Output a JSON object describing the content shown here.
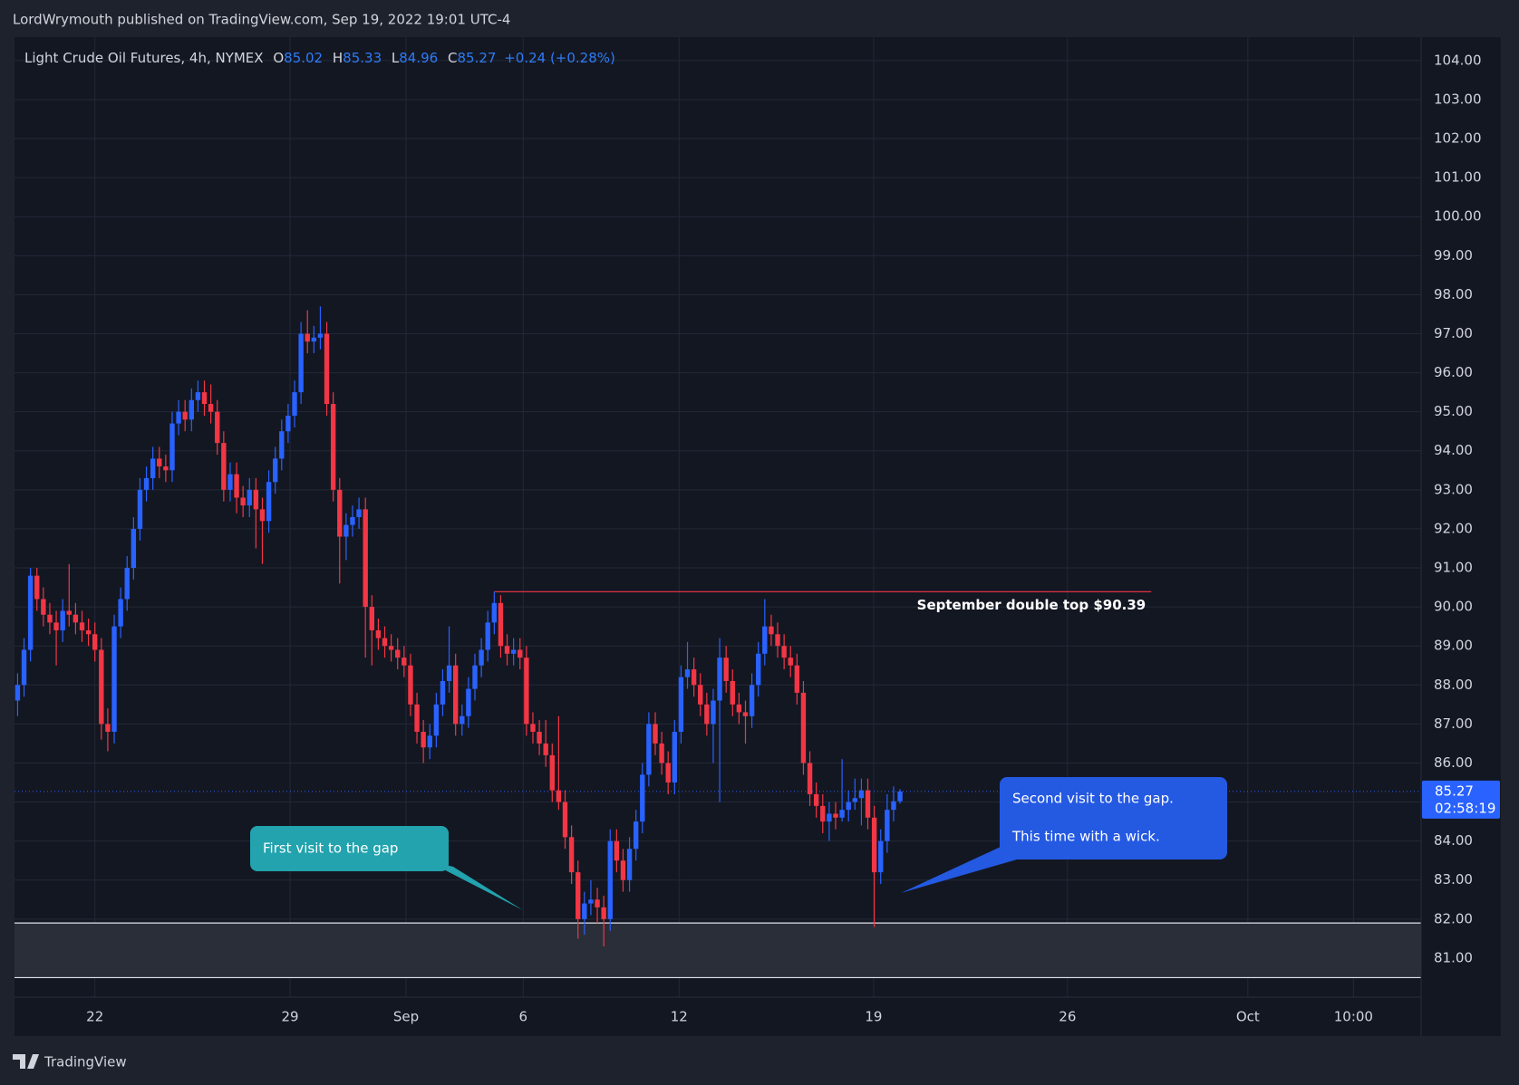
{
  "header": "LordWrymouth published on TradingView.com, Sep 19, 2022 19:01 UTC-4",
  "footer": "TradingView",
  "chart_data": {
    "type": "candlestick",
    "title": "Light Crude Oil Futures, 4h, NYMEX",
    "ohlc_labels": [
      "O",
      "H",
      "L",
      "C"
    ],
    "change_label": "+0.24 (+0.28%)",
    "countdown": "02:58:19",
    "up_color": "#2962ff",
    "down_color": "#f23645",
    "open": [
      87.6,
      88.0,
      88.9,
      90.8,
      90.2,
      89.8,
      89.6,
      89.4,
      89.9,
      89.8,
      89.6,
      89.4,
      89.3,
      88.9,
      87.0,
      86.8,
      89.5,
      90.2,
      91.0,
      92.0,
      93.0,
      93.3,
      93.8,
      93.6,
      93.5,
      94.7,
      95.0,
      94.8,
      95.3,
      95.5,
      95.2,
      95.0,
      94.2,
      93.0,
      93.4,
      92.8,
      92.6,
      93.0,
      92.5,
      92.2,
      93.2,
      93.8,
      94.5,
      94.9,
      95.5,
      97.0,
      96.8,
      96.9,
      97.0,
      95.2,
      93.0,
      91.8,
      92.1,
      92.3,
      92.5,
      90.0,
      89.4,
      89.2,
      89.0,
      88.9,
      88.7,
      88.5,
      87.5,
      86.8,
      86.4,
      86.7,
      87.5,
      88.1,
      88.5,
      87.0,
      87.2,
      87.9,
      88.5,
      88.9,
      89.6,
      90.1,
      89.0,
      88.8,
      88.9,
      88.7,
      87.0,
      86.8,
      86.5,
      86.2,
      85.3,
      85.0,
      84.1,
      83.2,
      82.0,
      82.4,
      82.5,
      82.3,
      82.0,
      84.0,
      83.5,
      83.0,
      83.8,
      84.5,
      85.7,
      87.0,
      86.5,
      86.0,
      85.5,
      86.8,
      88.2,
      88.4,
      88.0,
      87.5,
      87.0,
      87.6,
      88.7,
      88.1,
      87.5,
      87.3,
      87.2,
      88.0,
      88.8,
      89.5,
      89.3,
      89.0,
      88.7,
      88.5,
      87.8,
      86.0,
      85.2,
      84.9,
      84.5,
      84.7,
      84.6,
      84.8,
      85.0,
      85.1,
      85.3,
      84.6,
      83.2,
      84.0,
      84.8,
      85.02
    ],
    "high": [
      88.3,
      89.2,
      91.0,
      91.0,
      90.5,
      90.1,
      89.9,
      90.2,
      91.1,
      90.1,
      89.9,
      89.7,
      89.6,
      89.2,
      87.4,
      89.8,
      90.5,
      91.3,
      92.3,
      93.3,
      93.6,
      94.1,
      94.1,
      93.9,
      95.0,
      95.3,
      95.3,
      95.6,
      95.8,
      95.8,
      95.7,
      95.3,
      94.5,
      93.7,
      93.7,
      93.1,
      93.3,
      93.3,
      92.8,
      93.5,
      94.1,
      94.8,
      95.2,
      95.8,
      97.3,
      97.6,
      97.2,
      97.7,
      97.3,
      95.5,
      93.3,
      92.4,
      92.6,
      92.8,
      92.8,
      90.3,
      89.7,
      89.5,
      89.3,
      89.2,
      89.0,
      88.8,
      87.8,
      87.1,
      87.0,
      87.8,
      88.4,
      89.5,
      88.8,
      87.5,
      88.2,
      88.8,
      89.2,
      89.9,
      90.39,
      90.3,
      89.3,
      89.2,
      89.2,
      89.0,
      87.3,
      87.1,
      87.1,
      86.5,
      87.2,
      85.3,
      84.4,
      83.5,
      82.7,
      83.0,
      82.8,
      82.6,
      84.3,
      84.3,
      83.8,
      84.1,
      84.8,
      86.0,
      87.3,
      87.3,
      86.8,
      86.3,
      87.1,
      88.5,
      89.1,
      88.7,
      88.3,
      87.8,
      87.9,
      89.2,
      89.0,
      88.4,
      87.8,
      87.6,
      88.3,
      89.1,
      90.2,
      89.8,
      89.6,
      89.3,
      89.0,
      88.8,
      88.1,
      86.3,
      85.5,
      85.2,
      85.0,
      85.0,
      86.1,
      85.3,
      85.6,
      85.6,
      85.6,
      84.9,
      84.3,
      85.2,
      85.4,
      85.33
    ],
    "low": [
      87.2,
      87.7,
      88.6,
      89.9,
      89.5,
      89.3,
      88.5,
      89.1,
      89.5,
      89.3,
      89.1,
      89.0,
      88.6,
      86.6,
      86.3,
      86.5,
      89.2,
      89.9,
      90.7,
      91.7,
      92.7,
      93.0,
      93.3,
      93.2,
      93.2,
      94.4,
      94.5,
      94.5,
      95.0,
      94.9,
      94.7,
      93.9,
      92.7,
      92.7,
      92.4,
      92.3,
      92.3,
      91.5,
      91.1,
      91.9,
      92.9,
      93.5,
      94.2,
      94.6,
      95.2,
      96.5,
      96.5,
      96.6,
      94.9,
      92.7,
      90.6,
      91.2,
      91.8,
      92.0,
      88.7,
      88.5,
      88.9,
      88.7,
      88.6,
      88.4,
      88.2,
      87.2,
      86.5,
      86.0,
      86.1,
      86.4,
      87.2,
      87.8,
      86.7,
      86.7,
      86.9,
      87.6,
      88.2,
      88.6,
      89.3,
      88.7,
      88.5,
      88.5,
      88.4,
      86.7,
      86.5,
      86.2,
      85.9,
      85.0,
      84.8,
      83.8,
      82.9,
      81.5,
      81.6,
      82.1,
      81.9,
      81.3,
      81.7,
      83.2,
      82.7,
      82.7,
      83.5,
      84.2,
      85.4,
      86.2,
      85.7,
      85.2,
      85.2,
      86.5,
      87.9,
      87.7,
      87.2,
      86.7,
      86.0,
      85.0,
      87.8,
      87.2,
      87.0,
      86.5,
      86.9,
      87.7,
      88.5,
      89.0,
      88.7,
      88.4,
      88.2,
      87.5,
      85.7,
      84.9,
      84.6,
      84.2,
      84.0,
      84.3,
      84.5,
      84.5,
      84.8,
      84.4,
      84.3,
      81.8,
      82.9,
      83.7,
      84.5,
      84.96
    ],
    "close": [
      88.0,
      88.9,
      90.8,
      90.2,
      89.8,
      89.6,
      89.4,
      89.9,
      89.8,
      89.6,
      89.4,
      89.3,
      88.9,
      87.0,
      86.8,
      89.5,
      90.2,
      91.0,
      92.0,
      93.0,
      93.3,
      93.8,
      93.6,
      93.5,
      94.7,
      95.0,
      94.8,
      95.3,
      95.5,
      95.2,
      95.0,
      94.2,
      93.0,
      93.4,
      92.8,
      92.6,
      93.0,
      92.5,
      92.2,
      93.2,
      93.8,
      94.5,
      94.9,
      95.5,
      97.0,
      96.8,
      96.9,
      97.0,
      95.2,
      93.0,
      91.8,
      92.1,
      92.3,
      92.5,
      90.0,
      89.4,
      89.2,
      89.0,
      88.9,
      88.7,
      88.5,
      87.5,
      86.8,
      86.4,
      86.7,
      87.5,
      88.1,
      88.5,
      87.0,
      87.2,
      87.9,
      88.5,
      88.9,
      89.6,
      90.1,
      89.0,
      88.8,
      88.9,
      88.7,
      87.0,
      86.8,
      86.5,
      86.2,
      85.3,
      85.0,
      84.1,
      83.2,
      82.0,
      82.4,
      82.5,
      82.3,
      82.0,
      84.0,
      83.5,
      83.0,
      83.8,
      84.5,
      85.7,
      87.0,
      86.5,
      86.0,
      85.5,
      86.8,
      88.2,
      88.4,
      88.0,
      87.5,
      87.0,
      87.6,
      88.7,
      88.1,
      87.5,
      87.3,
      87.2,
      88.0,
      88.8,
      89.5,
      89.3,
      89.0,
      88.7,
      88.5,
      87.8,
      86.0,
      85.2,
      84.9,
      84.5,
      84.7,
      84.6,
      84.8,
      85.0,
      85.1,
      85.3,
      84.6,
      83.2,
      84.0,
      84.8,
      85.02,
      85.27
    ],
    "xlim": [
      -0.2,
      217.9
    ],
    "xticks": [
      {
        "value": 12,
        "label": "22"
      },
      {
        "value": 42.3,
        "label": "29"
      },
      {
        "value": 60.3,
        "label": "Sep"
      },
      {
        "value": 78.5,
        "label": "6"
      },
      {
        "value": 102.7,
        "label": "12"
      },
      {
        "value": 132.9,
        "label": "19"
      },
      {
        "value": 163,
        "label": "26"
      },
      {
        "value": 191,
        "label": "Oct"
      },
      {
        "value": 207.4,
        "label": "10:00"
      }
    ],
    "ylim": [
      80,
      104.6
    ],
    "yticks": [
      {
        "value": 81,
        "label": "81.00"
      },
      {
        "value": 82,
        "label": "82.00"
      },
      {
        "value": 83,
        "label": "83.00"
      },
      {
        "value": 84,
        "label": "84.00"
      },
      {
        "value": 85,
        "label": "85.00"
      },
      {
        "value": 86,
        "label": "86.00"
      },
      {
        "value": 87,
        "label": "87.00"
      },
      {
        "value": 88,
        "label": "88.00"
      },
      {
        "value": 89,
        "label": "89.00"
      },
      {
        "value": 90,
        "label": "90.00"
      },
      {
        "value": 91,
        "label": "91.00"
      },
      {
        "value": 92,
        "label": "92.00"
      },
      {
        "value": 93,
        "label": "93.00"
      },
      {
        "value": 94,
        "label": "94.00"
      },
      {
        "value": 95,
        "label": "95.00"
      },
      {
        "value": 96,
        "label": "96.00"
      },
      {
        "value": 97,
        "label": "97.00"
      },
      {
        "value": 98,
        "label": "98.00"
      },
      {
        "value": 99,
        "label": "99.00"
      },
      {
        "value": 100,
        "label": "100.00"
      },
      {
        "value": 101,
        "label": "101.00"
      },
      {
        "value": 102,
        "label": "102.00"
      },
      {
        "value": 103,
        "label": "103.00"
      },
      {
        "value": 104,
        "label": "104.00"
      }
    ],
    "grid": true,
    "double_top": {
      "value": 90.39,
      "start": 74,
      "end": 176,
      "label": "September double top $90.39",
      "color": "#f23645"
    },
    "gap_zone": {
      "low": 80.5,
      "high": 81.9
    },
    "callouts": [
      {
        "lines": [
          "First visit to the gap"
        ],
        "color": "#22a3ae"
      },
      {
        "lines": [
          "Second visit to the gap.",
          "This time with a wick."
        ],
        "color": "#2459e2"
      }
    ]
  }
}
